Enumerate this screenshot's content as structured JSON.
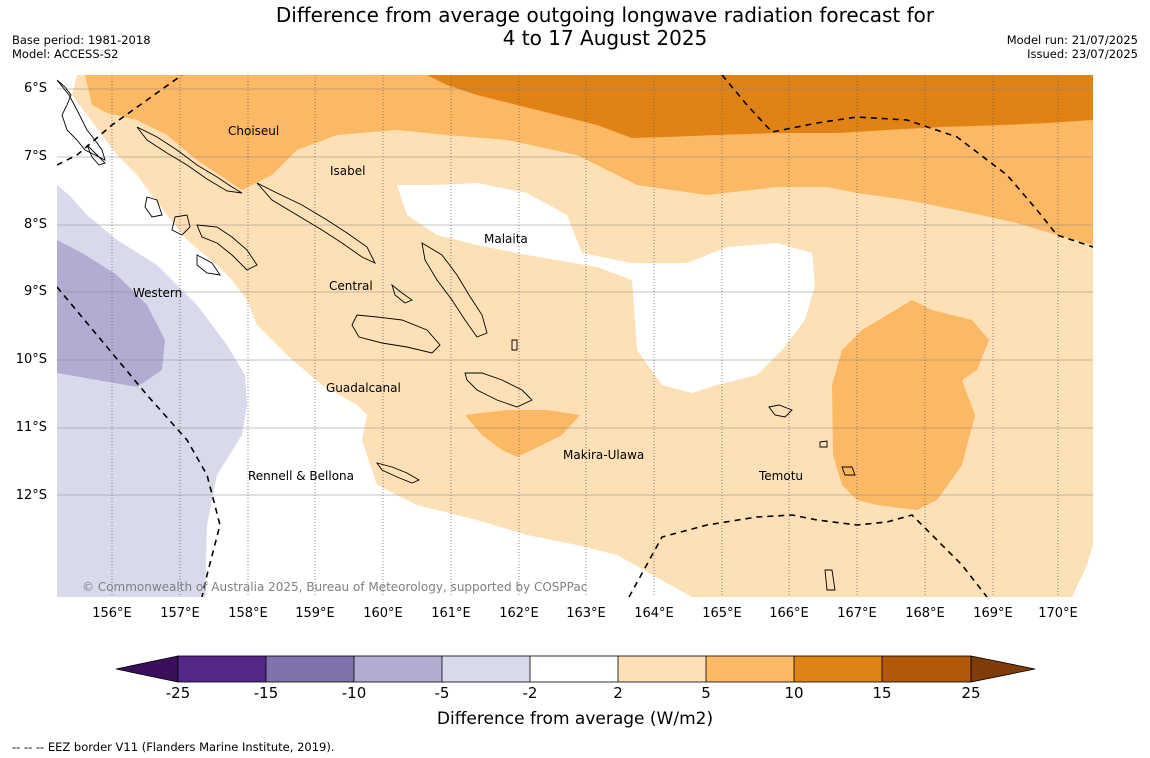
{
  "title_line1": "Difference from average outgoing longwave radiation forecast for",
  "title_line2": "4 to 17 August 2025",
  "base_period": "Base period: 1981-2018",
  "model": "Model: ACCESS-S2",
  "model_run": "Model run: 21/07/2025",
  "issued": "Issued: 23/07/2025",
  "lat_labels": [
    "6°S",
    "7°S",
    "8°S",
    "9°S",
    "10°S",
    "11°S",
    "12°S"
  ],
  "lon_labels": [
    "156°E",
    "157°E",
    "158°E",
    "159°E",
    "160°E",
    "161°E",
    "162°E",
    "163°E",
    "164°E",
    "165°E",
    "166°E",
    "167°E",
    "168°E",
    "169°E",
    "170°E"
  ],
  "regions": {
    "choiseul": "Choiseul",
    "isabel": "Isabel",
    "malaita": "Malaita",
    "western": "Western",
    "central": "Central",
    "guadalcanal": "Guadalcanal",
    "makira": "Makira-Ulawa",
    "rennell": "Rennell & Bellona",
    "temotu": "Temotu"
  },
  "copyright": "© Commonwealth of Australia 2025, Bureau of Meteorology, supported by COSPPac",
  "colorbar": {
    "ticks": [
      "-25",
      "-15",
      "-10",
      "-5",
      "-2",
      "2",
      "5",
      "10",
      "15",
      "25"
    ],
    "title": "Difference from average (W/m2)",
    "colors": [
      "#3b0f5c",
      "#542788",
      "#8073ac",
      "#b2abd2",
      "#d8daeb",
      "#ffffff",
      "#fee0b6",
      "#fdb863",
      "#e08214",
      "#b35806",
      "#7f3b08"
    ]
  },
  "footnote": "--  --  -- EEZ border V11 (Flanders Marine Institute, 2019)."
}
